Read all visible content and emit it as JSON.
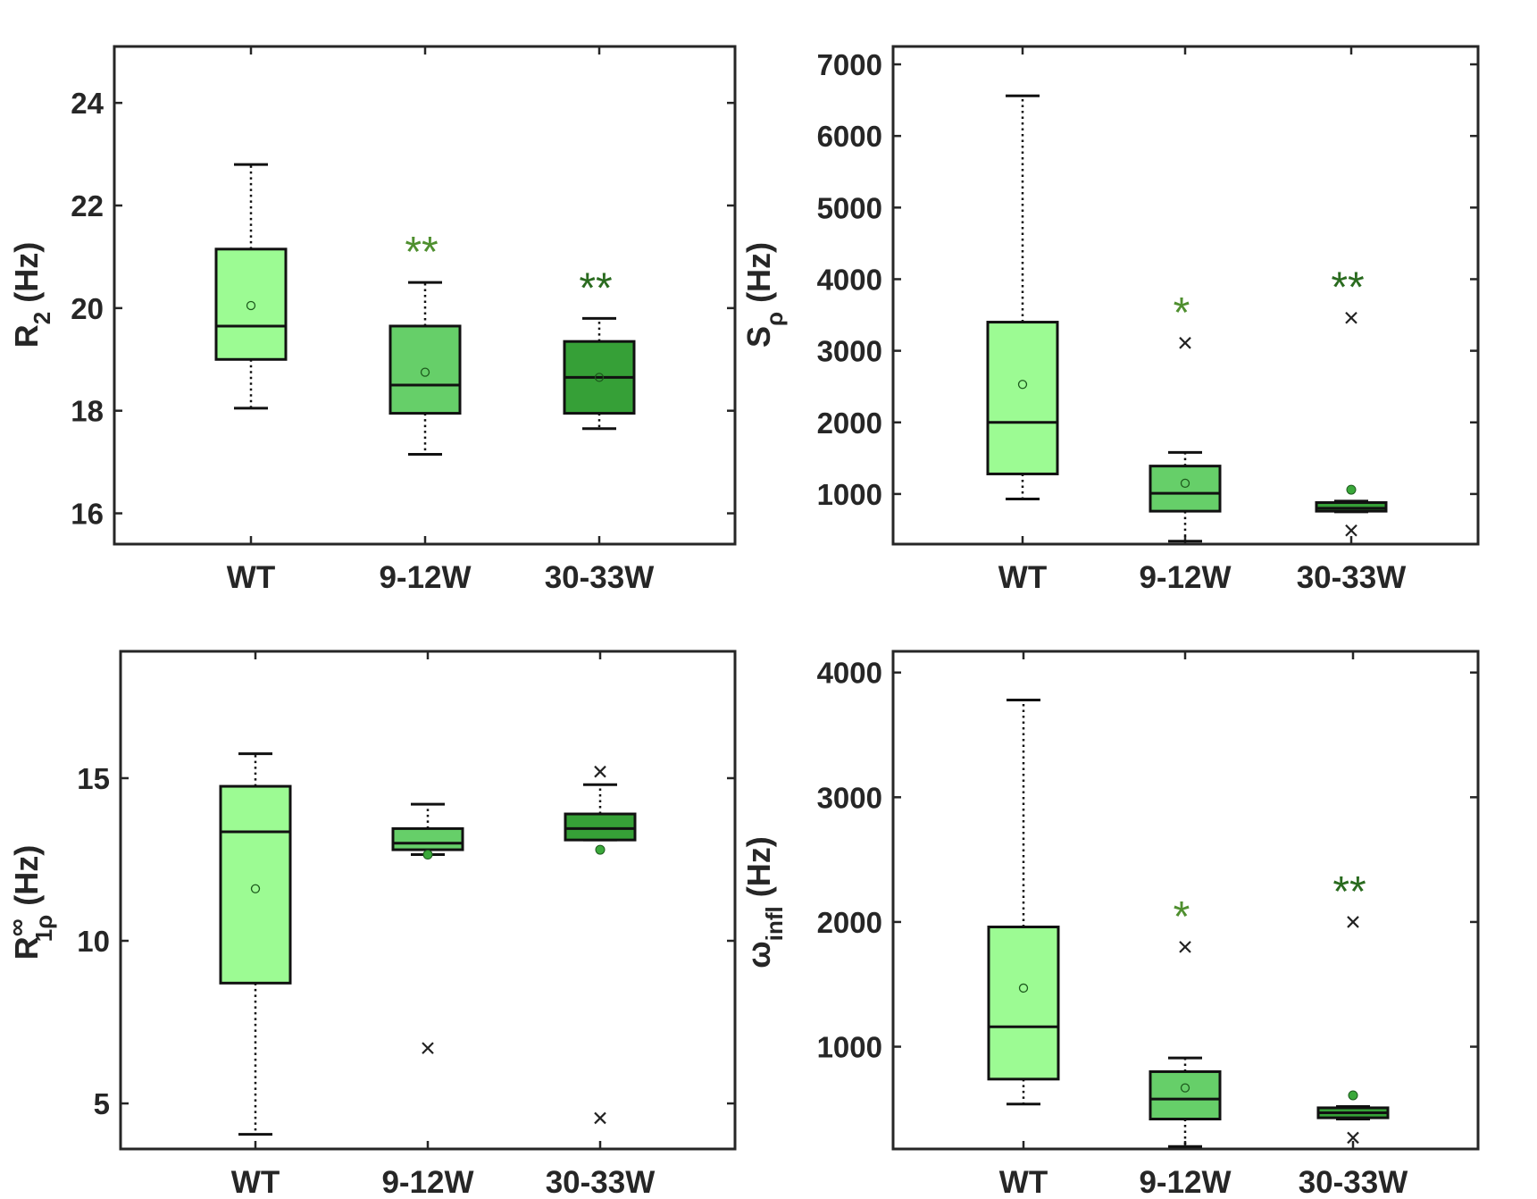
{
  "figure": {
    "colors": {
      "wt": "#9cfb93",
      "early": "#66cf69",
      "late": "#36a037",
      "star_light": "#4f8f2f",
      "star_dark": "#2a6b1f",
      "outlier_dot": "#3aa83a",
      "axis": "#262626"
    }
  },
  "chart_data": [
    {
      "id": "r2",
      "type": "box",
      "ylabel": {
        "main": "R",
        "sub": "2",
        "unit": " (Hz)"
      },
      "categories": [
        "WT",
        "9-12W",
        "30-33W"
      ],
      "ylim": [
        15.4,
        25.1
      ],
      "yticks": [
        16,
        18,
        20,
        22,
        24
      ],
      "boxes": [
        {
          "category": "WT",
          "whisker_low": 18.05,
          "q1": 19.0,
          "median": 19.65,
          "q3": 21.15,
          "whisker_high": 22.8,
          "mean": 20.05,
          "outliers": [],
          "sig": ""
        },
        {
          "category": "9-12W",
          "whisker_low": 17.15,
          "q1": 17.95,
          "median": 18.5,
          "q3": 19.65,
          "whisker_high": 20.5,
          "mean": 18.75,
          "outliers": [],
          "sig": "**"
        },
        {
          "category": "30-33W",
          "whisker_low": 17.65,
          "q1": 17.95,
          "median": 18.65,
          "q3": 19.35,
          "whisker_high": 19.8,
          "mean": 18.65,
          "outliers": [],
          "sig": "**"
        }
      ]
    },
    {
      "id": "srho",
      "type": "box",
      "ylabel": {
        "main": "S",
        "sub": "ρ",
        "unit": " (Hz)"
      },
      "categories": [
        "WT",
        "9-12W",
        "30-33W"
      ],
      "ylim": [
        300,
        7250
      ],
      "yticks": [
        1000,
        2000,
        3000,
        4000,
        5000,
        6000,
        7000
      ],
      "boxes": [
        {
          "category": "WT",
          "whisker_low": 930,
          "q1": 1280,
          "median": 2000,
          "q3": 3400,
          "whisker_high": 6560,
          "mean": 2530,
          "outliers": [],
          "sig": ""
        },
        {
          "category": "9-12W",
          "whisker_low": 340,
          "q1": 760,
          "median": 1010,
          "q3": 1390,
          "whisker_high": 1580,
          "mean": 1150,
          "outliers": [
            3110
          ],
          "sig": "*"
        },
        {
          "category": "30-33W",
          "whisker_low": 750,
          "q1": 760,
          "median": 800,
          "q3": 880,
          "whisker_high": 900,
          "mean": 1060,
          "outliers": [
            3460,
            490
          ],
          "sig": "**"
        }
      ]
    },
    {
      "id": "r1rho",
      "type": "box",
      "ylabel": {
        "main": "R",
        "sup": "∞",
        "sub": "1ρ",
        "unit": " (Hz)"
      },
      "categories": [
        "WT",
        "9-12W",
        "30-33W"
      ],
      "ylim": [
        3.6,
        18.9
      ],
      "yticks": [
        5,
        10,
        15
      ],
      "boxes": [
        {
          "category": "WT",
          "whisker_low": 4.05,
          "q1": 8.7,
          "median": 13.35,
          "q3": 14.75,
          "whisker_high": 15.75,
          "mean": 11.6,
          "outliers": [],
          "sig": ""
        },
        {
          "category": "9-12W",
          "whisker_low": 12.65,
          "q1": 12.8,
          "median": 13.0,
          "q3": 13.45,
          "whisker_high": 14.2,
          "mean": 12.65,
          "outliers": [
            6.7
          ],
          "sig": ""
        },
        {
          "category": "30-33W",
          "whisker_low": 13.1,
          "q1": 13.1,
          "median": 13.45,
          "q3": 13.9,
          "whisker_high": 14.8,
          "mean": 12.8,
          "outliers": [
            15.2,
            4.55
          ],
          "sig": ""
        }
      ]
    },
    {
      "id": "winfl",
      "type": "box",
      "ylabel": {
        "main": "ω",
        "sub": "infl",
        "unit": " (Hz)"
      },
      "categories": [
        "WT",
        "9-12W",
        "30-33W"
      ],
      "ylim": [
        180,
        4170
      ],
      "yticks": [
        1000,
        2000,
        3000,
        4000
      ],
      "boxes": [
        {
          "category": "WT",
          "whisker_low": 540,
          "q1": 740,
          "median": 1160,
          "q3": 1960,
          "whisker_high": 3780,
          "mean": 1470,
          "outliers": [],
          "sig": ""
        },
        {
          "category": "9-12W",
          "whisker_low": 200,
          "q1": 420,
          "median": 580,
          "q3": 800,
          "whisker_high": 910,
          "mean": 670,
          "outliers": [
            1800
          ],
          "sig": "*"
        },
        {
          "category": "30-33W",
          "whisker_low": 420,
          "q1": 430,
          "median": 470,
          "q3": 510,
          "whisker_high": 520,
          "mean": 610,
          "outliers": [
            2000,
            270
          ],
          "sig": "**"
        }
      ]
    }
  ]
}
